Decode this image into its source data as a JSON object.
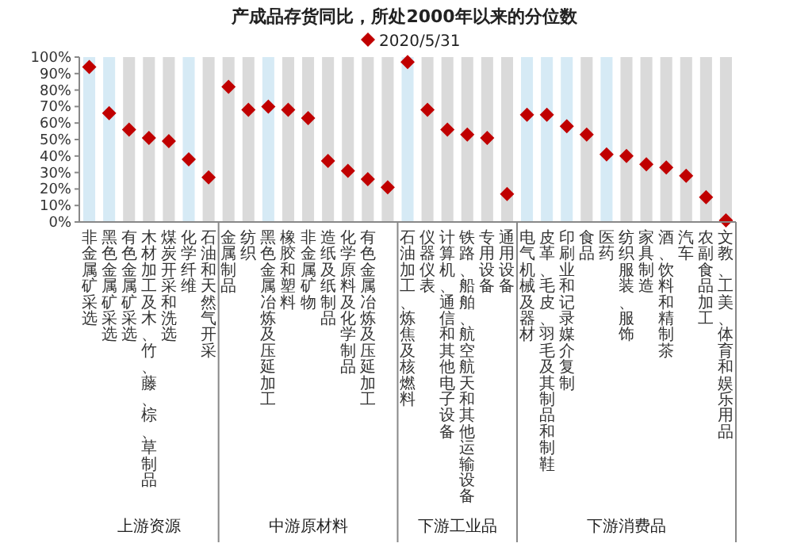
{
  "chart_data": {
    "type": "scatter",
    "title": "产成品存货同比，所处2000年以来的分位数",
    "legend": "top",
    "marker": "diamond",
    "categories": [
      "非金属矿采选",
      "黑色金属矿采选",
      "有色金属矿采选",
      "木材加工及木、竹、藤、棕、草制品",
      "煤炭开采和洗选",
      "化学纤维",
      "石油和天然气开采",
      "金属制品",
      "纺织",
      "黑色金属冶炼及压延加工",
      "橡胶和塑料",
      "非金属矿物",
      "造纸及纸制品",
      "化学原料及化学制品",
      "有色金属冶炼及压延加工",
      null,
      "石油加工、炼焦及核燃料",
      "仪器仪表",
      "计算机、通信和其他电子设备",
      "铁路、船舶、航空航天和其他运输设备",
      "专用设备",
      "通用设备",
      "电气机械及器材",
      "皮革、毛皮、羽毛及其制品和制鞋",
      "印刷业和记录媒介复制",
      "食品",
      "医药",
      "纺织服装、服饰",
      "家具制造",
      "酒、饮料和精制茶",
      "汽车",
      "农副食品加工",
      "文教、工美、体育和娱乐用品"
    ],
    "series": [
      {
        "type": "bar",
        "values": [
          100,
          100,
          100,
          100,
          100,
          100,
          100,
          100,
          100,
          100,
          100,
          100,
          100,
          100,
          100,
          100,
          100,
          100,
          100,
          100,
          100,
          100,
          100,
          100,
          100,
          100,
          100,
          100,
          100,
          100,
          100,
          100,
          100
        ],
        "colors": [
          "#d6eaf5",
          "#d6eaf5",
          "#dadada",
          "#dadada",
          "#dadada",
          "#d6eaf5",
          "#dadada",
          "#dadada",
          "#dadada",
          "#d6eaf5",
          "#dadada",
          "#dadada",
          "#dadada",
          "#dadada",
          "#dadada",
          "#dadada",
          "#d6eaf5",
          "#dadada",
          "#dadada",
          "#dadada",
          "#dadada",
          "#dadada",
          "#d6eaf5",
          "#d6eaf5",
          "#d6eaf5",
          "#dadada",
          "#d6eaf5",
          "#dadada",
          "#dadada",
          "#dadada",
          "#dadada",
          "#dadada",
          "#dadada"
        ]
      },
      {
        "name": "2020/5/31",
        "color": "#c00000",
        "values": [
          94,
          66,
          56,
          51,
          49,
          38,
          27,
          82,
          68,
          70,
          68,
          63,
          37,
          31,
          26,
          21,
          97,
          68,
          56,
          53,
          51,
          17,
          65,
          65,
          58,
          53,
          41,
          40,
          35,
          33,
          28,
          15,
          1
        ]
      }
    ],
    "ylim": [
      0,
      100
    ],
    "yticks": [
      {
        "value": 0,
        "label": "0%"
      },
      {
        "value": 10,
        "label": "10%"
      },
      {
        "value": 20,
        "label": "20%"
      },
      {
        "value": 30,
        "label": "30%"
      },
      {
        "value": 40,
        "label": "40%"
      },
      {
        "value": 50,
        "label": "50%"
      },
      {
        "value": 60,
        "label": "60%"
      },
      {
        "value": 70,
        "label": "70%"
      },
      {
        "value": 80,
        "label": "80%"
      },
      {
        "value": 90,
        "label": "90%"
      },
      {
        "value": 100,
        "label": "100%"
      }
    ],
    "annotations": [
      "上游资源",
      "中游原材料",
      "下游工业品",
      "下游消费品"
    ]
  }
}
